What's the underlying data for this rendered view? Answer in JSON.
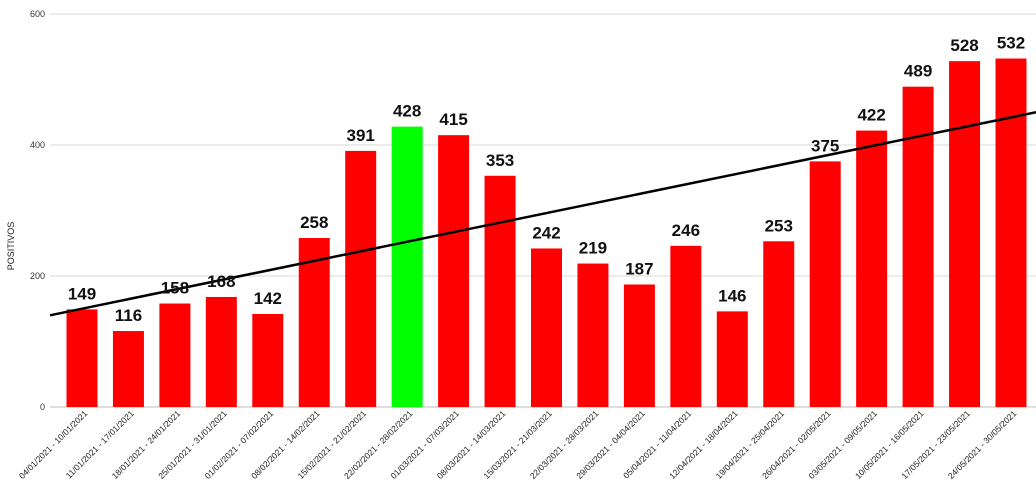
{
  "chart_data": {
    "type": "bar",
    "ylabel": "POSITIVOS",
    "ylim": [
      0,
      600
    ],
    "yticks": [
      0,
      200,
      400,
      600
    ],
    "grid": true,
    "legend": "none",
    "colors": {
      "bar": "#ff0000",
      "highlight": "#00ff00",
      "trendline": "#000000",
      "grid": "#d9d9d9"
    },
    "highlight_index": 7,
    "trendline": {
      "type": "linear",
      "start_value": 140,
      "end_value": 450
    },
    "categories": [
      "04/01/2021 - 10/01/2021",
      "11/01/2021 - 17/01/2021",
      "18/01/2021 - 24/01/2021",
      "25/01/2021 - 31/01/2021",
      "01/02/2021 - 07/02/2021",
      "08/02/2021 - 14/02/2021",
      "15/02/2021 - 21/02/2021",
      "22/02/2021 - 28/02/2021",
      "01/03/2021 - 07/03/2021",
      "08/03/2021 - 14/03/2021",
      "15/03/2021 - 21/03/2021",
      "22/03/2021 - 28/03/2021",
      "29/03/2021 - 04/04/2021",
      "05/04/2021 - 11/04/2021",
      "12/04/2021 - 18/04/2021",
      "19/04/2021 - 25/04/2021",
      "26/04/2021 - 02/05/2021",
      "03/05/2021 - 09/05/2021",
      "10/05/2021 - 16/05/2021",
      "17/05/2021 - 23/05/2021",
      "24/05/2021 - 30/05/2021"
    ],
    "values": [
      149,
      116,
      158,
      168,
      142,
      258,
      391,
      428,
      415,
      353,
      242,
      219,
      187,
      246,
      146,
      253,
      375,
      422,
      489,
      528,
      532
    ]
  }
}
